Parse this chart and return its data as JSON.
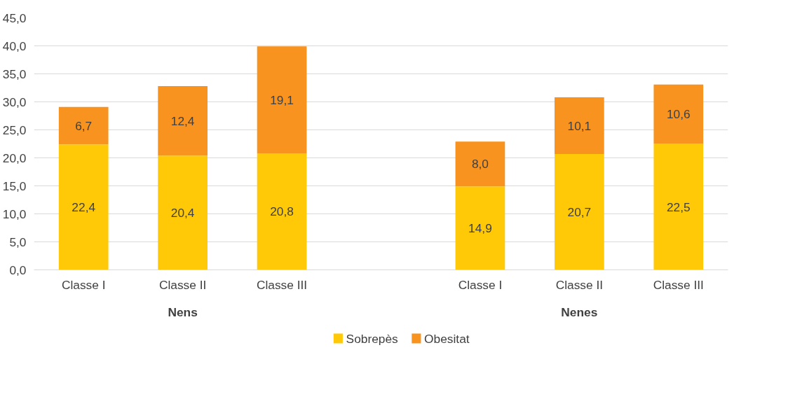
{
  "chart_data": {
    "type": "bar",
    "stacked": true,
    "categories": [
      "Classe I",
      "Classe II",
      "Classe III",
      null,
      "Classe I",
      "Classe II",
      "Classe III"
    ],
    "series": [
      {
        "name": "Sobrepès",
        "color": "#ffc907",
        "values": [
          22.4,
          20.4,
          20.8,
          null,
          14.9,
          20.7,
          22.5
        ],
        "value_labels": [
          "22,4",
          "20,4",
          "20,8",
          null,
          "14,9",
          "20,7",
          "22,5"
        ]
      },
      {
        "name": "Obesitat",
        "color": "#f7931e",
        "values": [
          6.7,
          12.4,
          19.1,
          null,
          8.0,
          10.1,
          10.6
        ],
        "value_labels": [
          "6,7",
          "12,4",
          "19,1",
          null,
          "8,0",
          "10,1",
          "10,6"
        ]
      }
    ],
    "annotations": [
      "Nens",
      "Nenes"
    ],
    "ylim": [
      0,
      45
    ],
    "yticks": [
      {
        "value": 0,
        "label": "0,0"
      },
      {
        "value": 5,
        "label": "5,0"
      },
      {
        "value": 10,
        "label": "10,0"
      },
      {
        "value": 15,
        "label": "15,0"
      },
      {
        "value": 20,
        "label": "20,0"
      },
      {
        "value": 25,
        "label": "25,0"
      },
      {
        "value": 30,
        "label": "30,0"
      },
      {
        "value": 35,
        "label": "35,0"
      },
      {
        "value": 40,
        "label": "40,0"
      },
      {
        "value": 45,
        "label": "45,0"
      }
    ],
    "grid": "y",
    "legend": "bottom"
  }
}
